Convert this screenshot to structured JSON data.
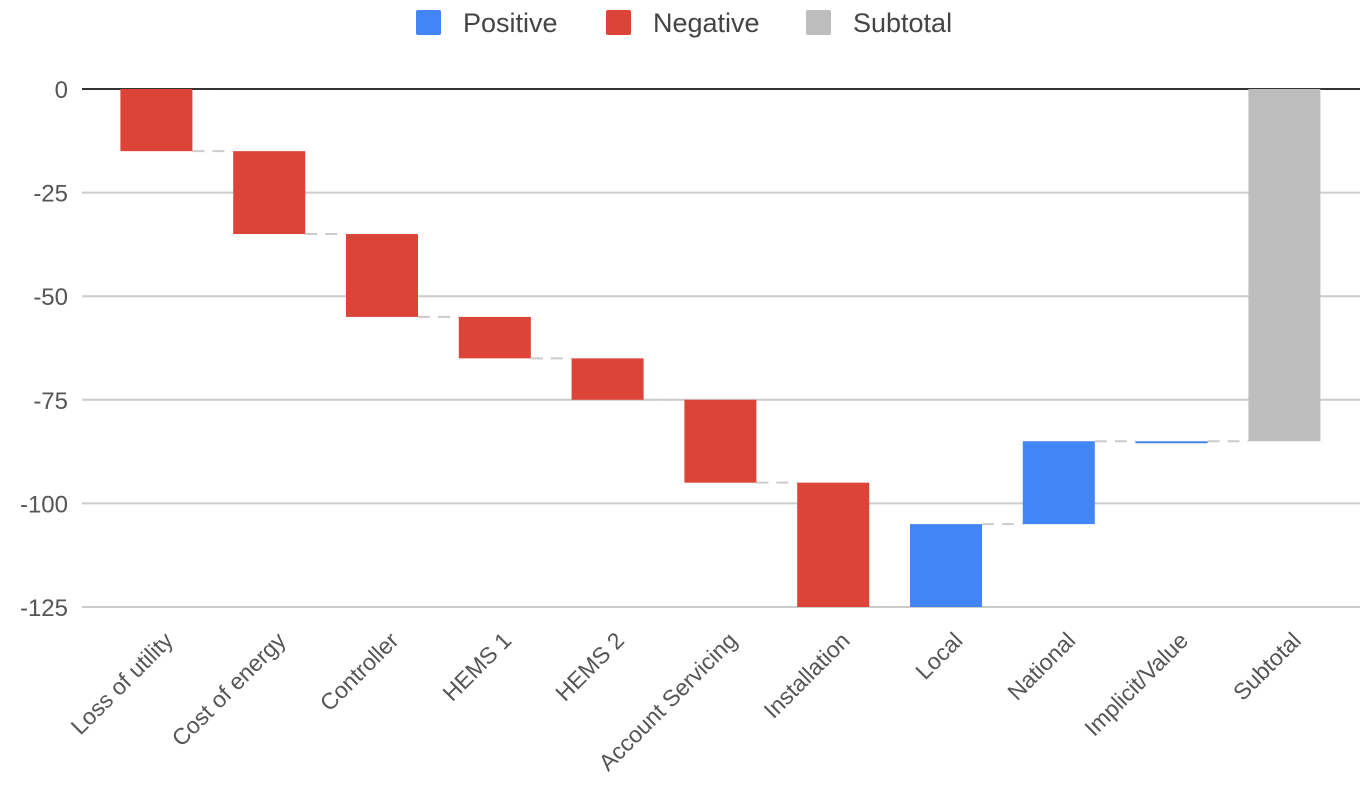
{
  "chart_data": {
    "type": "waterfall",
    "categories": [
      "Loss of utility",
      "Cost of energy",
      "Controller",
      "HEMS 1",
      "HEMS 2",
      "Account Servicing",
      "Installation",
      "Local",
      "National",
      "Implicit/Value",
      "Subtotal"
    ],
    "deltas": [
      -15,
      -20,
      -20,
      -10,
      -10,
      -20,
      -30,
      20,
      20,
      0,
      -85
    ],
    "kinds": [
      "negative",
      "negative",
      "negative",
      "negative",
      "negative",
      "negative",
      "negative",
      "positive",
      "positive",
      "positive",
      "subtotal"
    ],
    "start_values": [
      0,
      -15,
      -35,
      -55,
      -65,
      -75,
      -95,
      -125,
      -105,
      -85,
      0
    ],
    "end_values": [
      -15,
      -35,
      -55,
      -65,
      -75,
      -95,
      -125,
      -105,
      -85,
      -85,
      -85
    ],
    "legend": [
      {
        "key": "positive",
        "label": "Positive",
        "color": "#4285F4"
      },
      {
        "key": "negative",
        "label": "Negative",
        "color": "#DB4437"
      },
      {
        "key": "subtotal",
        "label": "Subtotal",
        "color": "#BDBDBD"
      }
    ],
    "yticks": [
      0,
      -25,
      -50,
      -75,
      -100,
      -125
    ],
    "ylim": [
      -125,
      0
    ],
    "grid": true,
    "legend_position": "top-center",
    "title": "",
    "xlabel": "",
    "ylabel": ""
  }
}
